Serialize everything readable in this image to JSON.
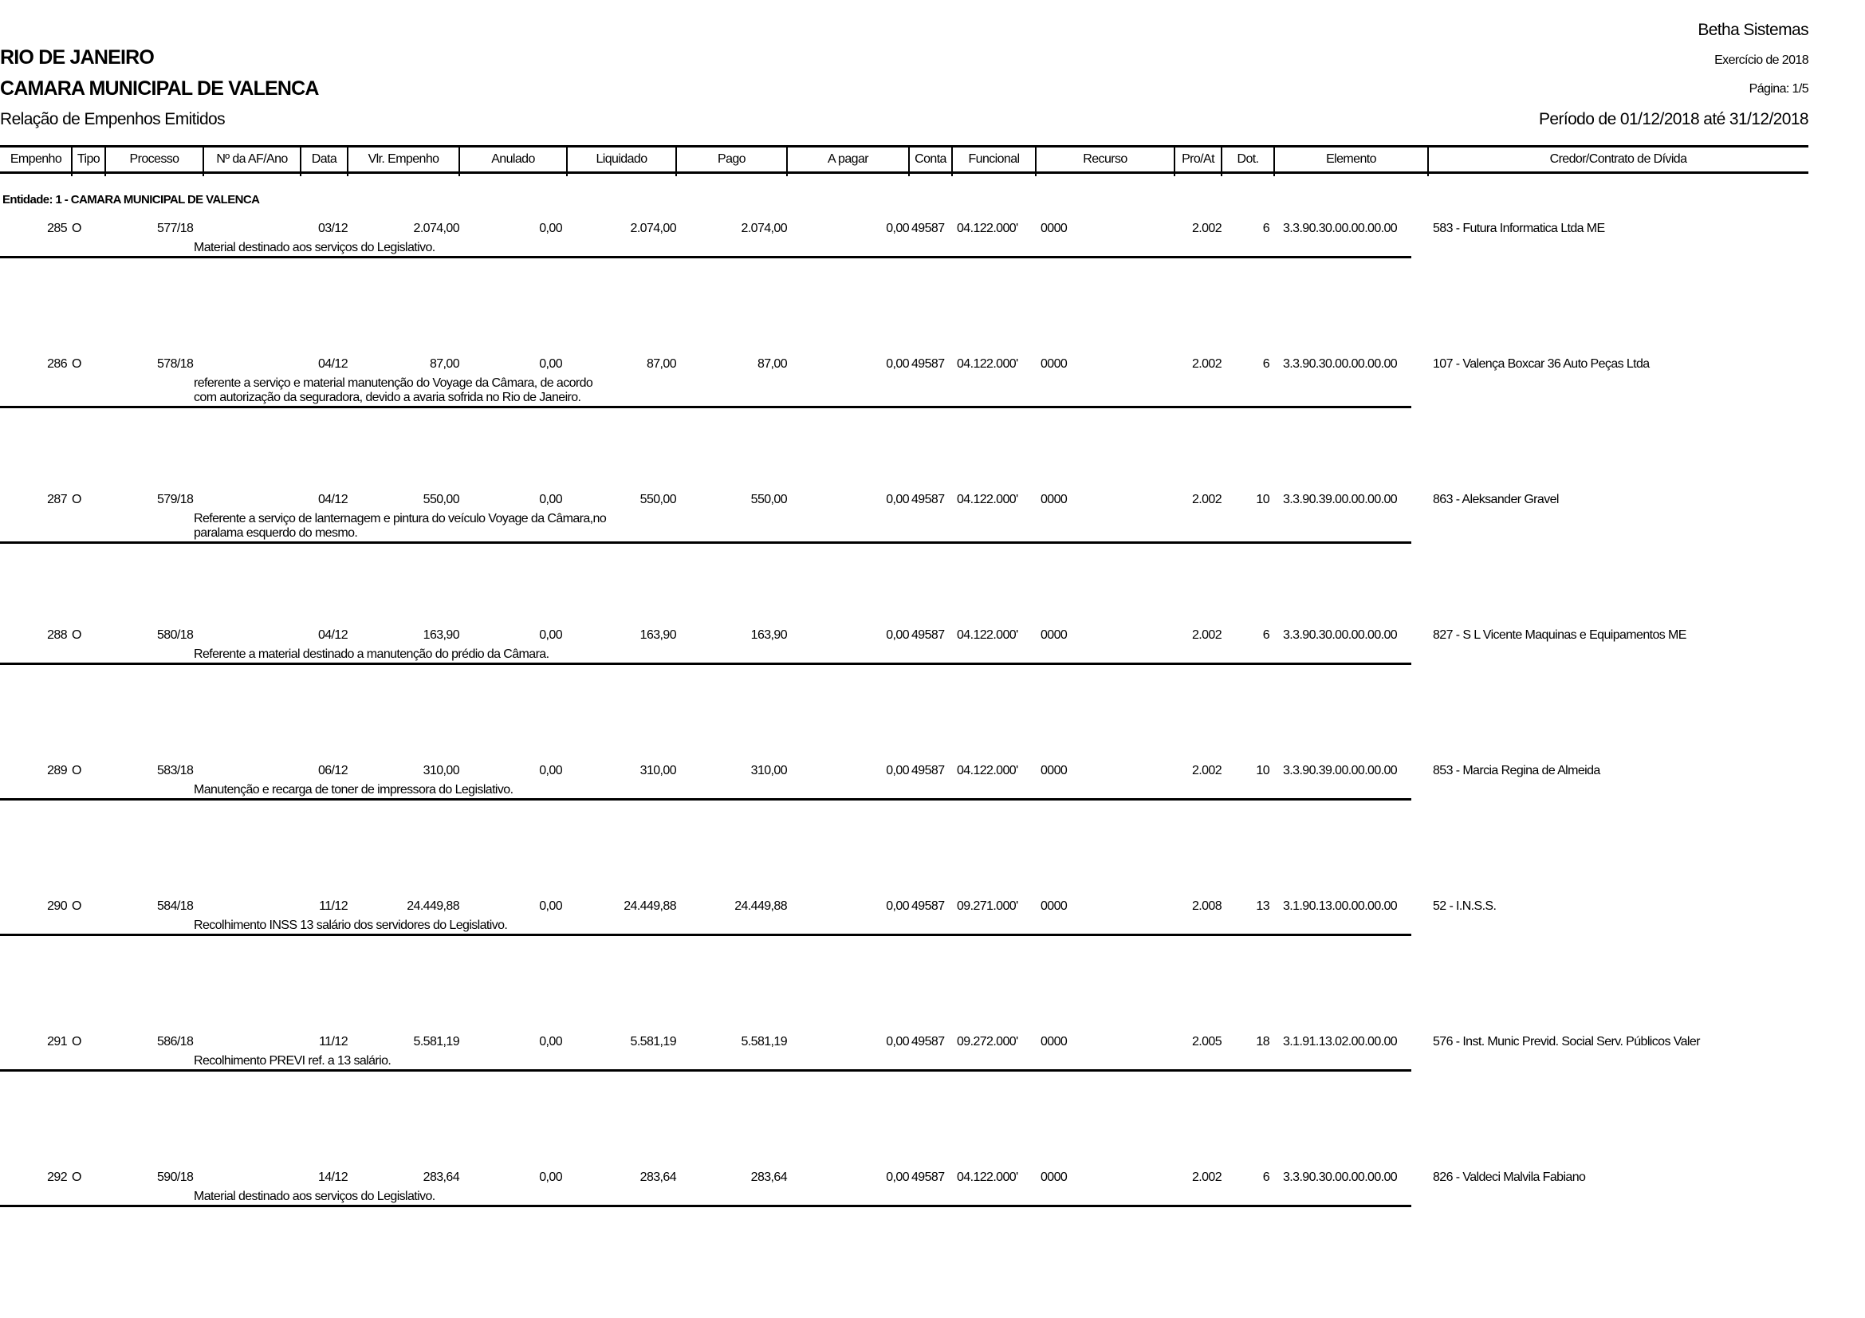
{
  "header": {
    "company": "Betha Sistemas",
    "state": "RIO DE JANEIRO",
    "entity": "CAMARA MUNICIPAL DE VALENCA",
    "report_title": "Relação de Empenhos Emitidos",
    "exercise": "Exercício de 2018",
    "page": "Página: 1/5",
    "period": "Período de 01/12/2018 até 31/12/2018"
  },
  "columns": [
    "Empenho",
    "Tipo",
    "Processo",
    "Nº da AF/Ano",
    "Data",
    "Vlr. Empenho",
    "Anulado",
    "Liquidado",
    "Pago",
    "A pagar",
    "Conta",
    "Funcional",
    "Recurso",
    "Pro/At",
    "Dot.",
    "Elemento",
    "Credor/Contrato de Dívida"
  ],
  "entity_group": "Entidade: 1 - CAMARA MUNICIPAL DE VALENCA",
  "rows": [
    {
      "empenho": "285",
      "tipo": "O",
      "processo": "577/18",
      "af": "",
      "data": "03/12",
      "valor": "2.074,00",
      "anulado": "0,00",
      "liquidado": "2.074,00",
      "pago": "2.074,00",
      "apagar": "0,00",
      "conta": "49587",
      "funcional": "04.122.000'",
      "recurso": "0000",
      "proat": "2.002",
      "dot": "6",
      "elemento": "3.3.90.30.00.00.00.00",
      "credor": "583 - Futura Informatica Ltda ME",
      "desc": [
        "Material destinado aos serviços do Legislativo."
      ]
    },
    {
      "empenho": "286",
      "tipo": "O",
      "processo": "578/18",
      "af": "",
      "data": "04/12",
      "valor": "87,00",
      "anulado": "0,00",
      "liquidado": "87,00",
      "pago": "87,00",
      "apagar": "0,00",
      "conta": "49587",
      "funcional": "04.122.000'",
      "recurso": "0000",
      "proat": "2.002",
      "dot": "6",
      "elemento": "3.3.90.30.00.00.00.00",
      "credor": "107 - Valença Boxcar 36 Auto Peças Ltda",
      "desc": [
        "referente a serviço e material  manutenção do Voyage da Câmara, de acordo",
        "com autorização da seguradora, devido a avaria sofrida no Rio de Janeiro."
      ]
    },
    {
      "empenho": "287",
      "tipo": "O",
      "processo": "579/18",
      "af": "",
      "data": "04/12",
      "valor": "550,00",
      "anulado": "0,00",
      "liquidado": "550,00",
      "pago": "550,00",
      "apagar": "0,00",
      "conta": "49587",
      "funcional": "04.122.000'",
      "recurso": "0000",
      "proat": "2.002",
      "dot": "10",
      "elemento": "3.3.90.39.00.00.00.00",
      "credor": "863 - Aleksander Gravel",
      "desc": [
        "Referente a serviço de lanternagem e pintura do veículo Voyage da Câmara,no",
        "paralama esquerdo do mesmo."
      ]
    },
    {
      "empenho": "288",
      "tipo": "O",
      "processo": "580/18",
      "af": "",
      "data": "04/12",
      "valor": "163,90",
      "anulado": "0,00",
      "liquidado": "163,90",
      "pago": "163,90",
      "apagar": "0,00",
      "conta": "49587",
      "funcional": "04.122.000'",
      "recurso": "0000",
      "proat": "2.002",
      "dot": "6",
      "elemento": "3.3.90.30.00.00.00.00",
      "credor": "827 - S L Vicente Maquinas e Equipamentos ME",
      "desc": [
        "Referente a material destinado a manutenção do prédio da Câmara."
      ]
    },
    {
      "empenho": "289",
      "tipo": "O",
      "processo": "583/18",
      "af": "",
      "data": "06/12",
      "valor": "310,00",
      "anulado": "0,00",
      "liquidado": "310,00",
      "pago": "310,00",
      "apagar": "0,00",
      "conta": "49587",
      "funcional": "04.122.000'",
      "recurso": "0000",
      "proat": "2.002",
      "dot": "10",
      "elemento": "3.3.90.39.00.00.00.00",
      "credor": "853 - Marcia Regina de Almeida",
      "desc": [
        "Manutenção e recarga de toner de impressora do Legislativo."
      ]
    },
    {
      "empenho": "290",
      "tipo": "O",
      "processo": "584/18",
      "af": "",
      "data": "11/12",
      "valor": "24.449,88",
      "anulado": "0,00",
      "liquidado": "24.449,88",
      "pago": "24.449,88",
      "apagar": "0,00",
      "conta": "49587",
      "funcional": "09.271.000'",
      "recurso": "0000",
      "proat": "2.008",
      "dot": "13",
      "elemento": "3.1.90.13.00.00.00.00",
      "credor": "52 - I.N.S.S.",
      "desc": [
        "Recolhimento INSS 13 salário dos servidores do Legislativo."
      ]
    },
    {
      "empenho": "291",
      "tipo": "O",
      "processo": "586/18",
      "af": "",
      "data": "11/12",
      "valor": "5.581,19",
      "anulado": "0,00",
      "liquidado": "5.581,19",
      "pago": "5.581,19",
      "apagar": "0,00",
      "conta": "49587",
      "funcional": "09.272.000'",
      "recurso": "0000",
      "proat": "2.005",
      "dot": "18",
      "elemento": "3.1.91.13.02.00.00.00",
      "credor": "576 - Inst. Munic Previd. Social Serv. Públicos Valer",
      "desc": [
        "Recolhimento PREVI ref. a 13 salário."
      ]
    },
    {
      "empenho": "292",
      "tipo": "O",
      "processo": "590/18",
      "af": "",
      "data": "14/12",
      "valor": "283,64",
      "anulado": "0,00",
      "liquidado": "283,64",
      "pago": "283,64",
      "apagar": "0,00",
      "conta": "49587",
      "funcional": "04.122.000'",
      "recurso": "0000",
      "proat": "2.002",
      "dot": "6",
      "elemento": "3.3.90.30.00.00.00.00",
      "credor": "826 - Valdeci Malvila Fabiano",
      "desc": [
        "Material destinado aos serviços do Legislativo."
      ]
    }
  ]
}
